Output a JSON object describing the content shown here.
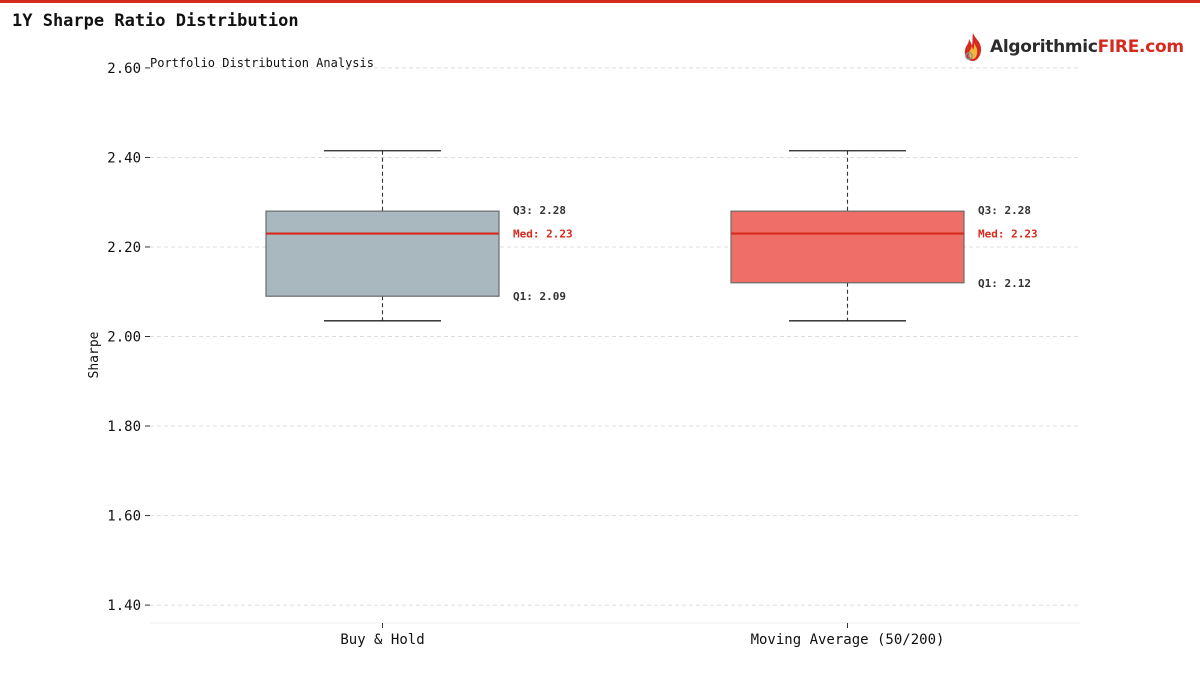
{
  "header": {
    "title": "1Y Sharpe Ratio Distribution",
    "logo_text_main": "Algorithmic",
    "logo_text_accent": "FIRE.com",
    "logo_icon": "flame-icon"
  },
  "colors": {
    "accent": "#d62a1e",
    "buy_hold_box": "#a9b8be",
    "moving_avg_box": "#ef6f68",
    "median_line": "#d62a1e",
    "grid": "#dddddd"
  },
  "chart_data": {
    "type": "boxplot",
    "subtitle": "Portfolio Distribution Analysis",
    "xlabel": "",
    "ylabel": "Sharpe",
    "ylim": [
      1.36,
      2.64
    ],
    "yticks": [
      "1.40",
      "1.60",
      "1.80",
      "2.00",
      "2.20",
      "2.40",
      "2.60"
    ],
    "grid": true,
    "series": [
      {
        "name": "Buy & Hold",
        "whisker_low": 2.035,
        "q1": 2.09,
        "median": 2.23,
        "q3": 2.28,
        "whisker_high": 2.415,
        "q1_label": "Q1: 2.09",
        "median_label": "Med: 2.23",
        "q3_label": "Q3: 2.28",
        "color": "#a9b8be"
      },
      {
        "name": "Moving Average (50/200)",
        "whisker_low": 2.035,
        "q1": 2.12,
        "median": 2.23,
        "q3": 2.28,
        "whisker_high": 2.415,
        "q1_label": "Q1: 2.12",
        "median_label": "Med: 2.23",
        "q3_label": "Q3: 2.28",
        "color": "#ef6f68"
      }
    ]
  }
}
